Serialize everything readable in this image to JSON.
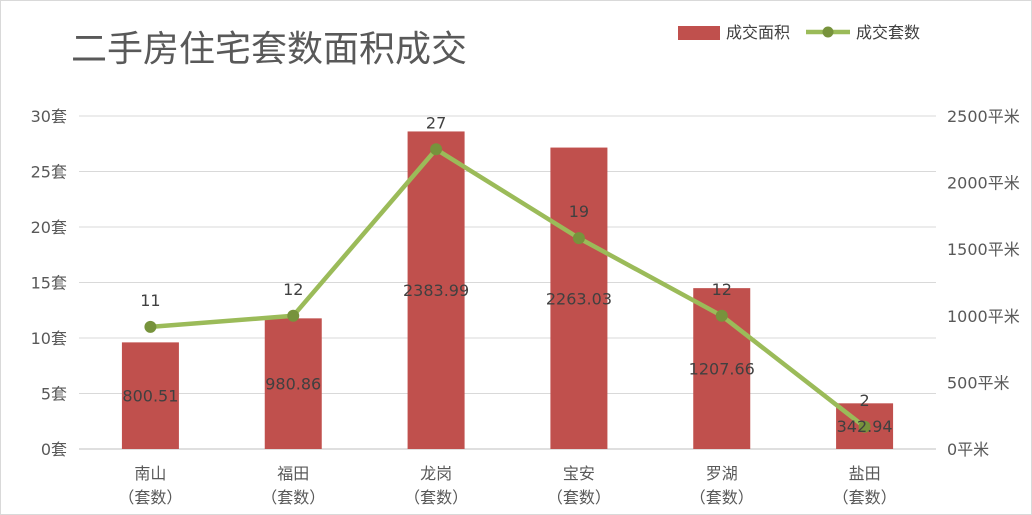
{
  "chart_data": {
    "title": "二手房住宅套数面积成交",
    "categories": [
      "南山\n（套数）",
      "福田\n（套数）",
      "龙岗\n（套数）",
      "宝安\n（套数）",
      "罗湖\n（套数）",
      "盐田\n（套数）"
    ],
    "series": [
      {
        "name": "成交面积",
        "type": "bar",
        "axis": "right",
        "color": "#c0504d",
        "values": [
          800.51,
          980.86,
          2383.99,
          2263.03,
          1207.66,
          342.94
        ],
        "labels": [
          "800.51",
          "980.86",
          "2383.99",
          "2263.03",
          "1207.66",
          "342.94"
        ]
      },
      {
        "name": "成交套数",
        "type": "line",
        "axis": "left",
        "color": "#9bbb59",
        "values": [
          11,
          12,
          27,
          19,
          12,
          2
        ],
        "labels": [
          "11",
          "12",
          "27",
          "19",
          "12",
          "2"
        ]
      }
    ],
    "y_left": {
      "ylim": [
        0,
        30
      ],
      "tick_labels": [
        "0套",
        "5套",
        "10套",
        "15套",
        "20套",
        "25套",
        "30套"
      ]
    },
    "y_right": {
      "ylim": [
        0,
        2500
      ],
      "tick_labels": [
        "0平米",
        "500平米",
        "1000平米",
        "1500平米",
        "2000平米",
        "2500平米"
      ]
    },
    "grid": true,
    "legend_position": "top-right"
  }
}
